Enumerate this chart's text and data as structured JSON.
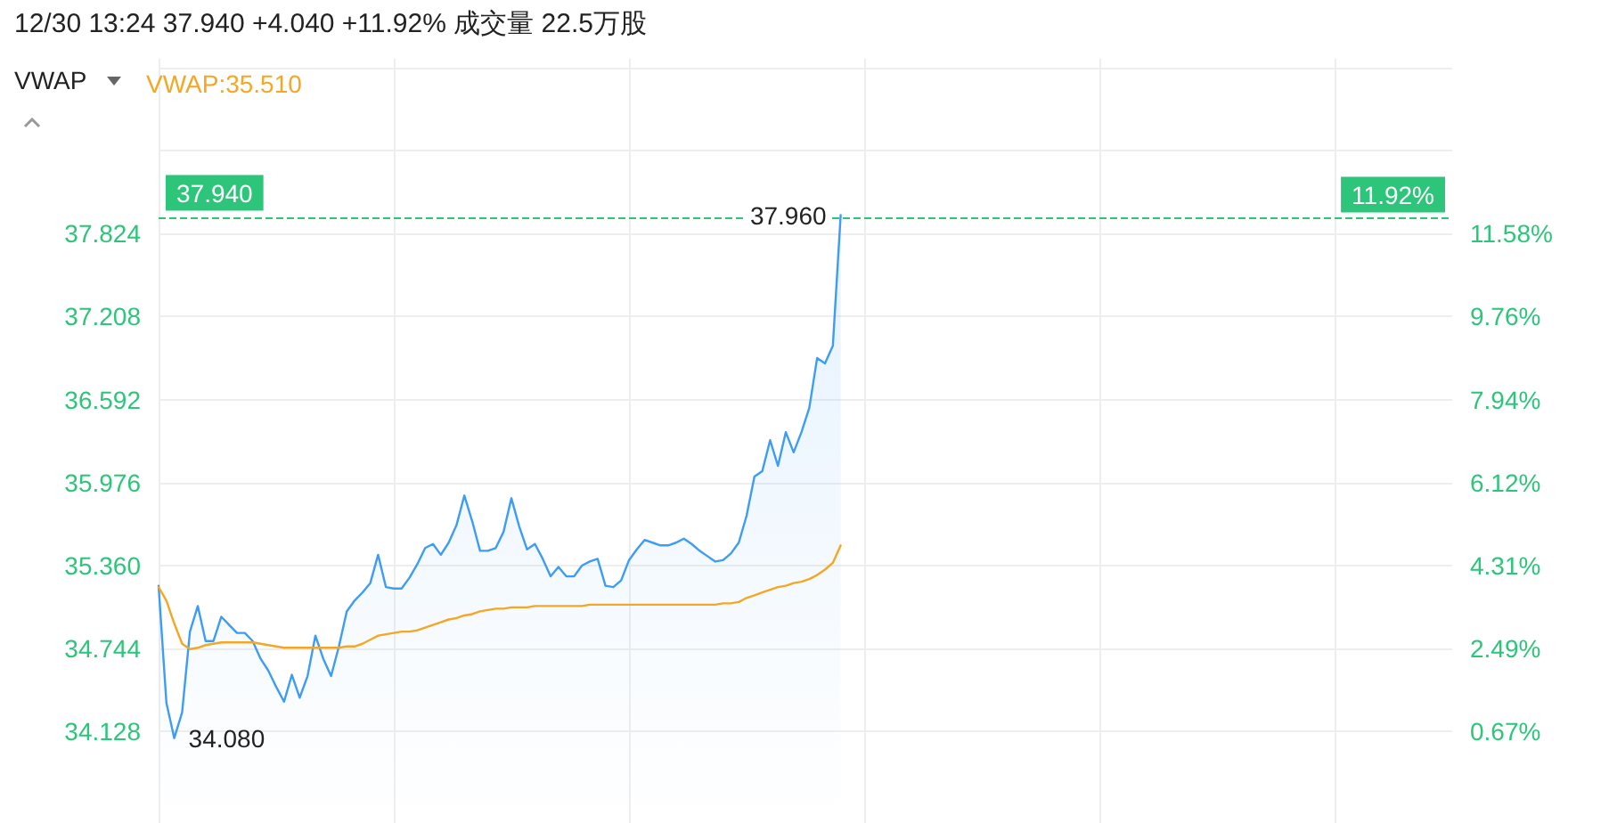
{
  "chart_data": {
    "type": "line",
    "title": "12/30 13:24 37.940 +4.040 +11.92% 成交量 22.5万股",
    "subtitle": "VWAP",
    "categories": [
      null,
      null,
      null,
      null,
      null,
      null,
      null,
      null,
      null,
      null,
      null,
      null,
      null,
      null,
      null,
      null,
      null,
      null,
      null,
      null,
      null,
      null,
      null,
      null,
      null,
      null,
      null,
      null,
      null,
      null,
      null,
      null,
      null,
      null,
      null,
      null,
      null,
      null,
      null,
      null,
      null,
      null,
      null,
      null,
      null,
      null,
      null,
      null,
      null,
      null,
      null,
      null,
      null,
      null,
      null,
      null,
      null,
      null,
      null,
      null,
      null,
      null,
      null,
      null,
      null,
      null,
      null,
      null,
      null,
      null,
      null,
      null,
      null,
      null,
      null,
      null,
      null,
      null,
      null,
      null,
      null,
      null,
      null,
      null,
      null,
      null,
      null,
      null
    ],
    "series": [
      {
        "type": "area",
        "color": "#3d9cf5",
        "values": [
          35.21,
          34.34,
          34.08,
          34.27,
          34.87,
          35.06,
          34.8,
          34.8,
          34.98,
          34.92,
          34.86,
          34.86,
          34.8,
          34.67,
          34.58,
          34.46,
          34.35,
          34.55,
          34.38,
          34.54,
          34.84,
          34.67,
          34.54,
          34.76,
          35.02,
          35.1,
          35.16,
          35.23,
          35.44,
          35.2,
          35.19,
          35.19,
          35.27,
          35.37,
          35.49,
          35.52,
          35.44,
          35.53,
          35.66,
          35.88,
          35.69,
          35.47,
          35.47,
          35.49,
          35.61,
          35.86,
          35.65,
          35.48,
          35.52,
          35.41,
          35.28,
          35.35,
          35.28,
          35.28,
          35.36,
          35.39,
          35.41,
          35.21,
          35.2,
          35.25,
          35.4,
          35.48,
          35.55,
          35.53,
          35.51,
          35.51,
          35.53,
          35.56,
          35.52,
          35.47,
          35.43,
          35.39,
          35.4,
          35.45,
          35.53,
          35.73,
          36.02,
          36.06,
          36.29,
          36.1,
          36.35,
          36.2,
          36.35,
          36.53,
          36.9,
          36.86,
          36.99,
          37.96
        ]
      },
      {
        "name": "VWAP:35.510",
        "color": "#f5a623",
        "values": [
          35.2,
          35.1,
          34.93,
          34.78,
          34.74,
          34.75,
          34.77,
          34.78,
          34.79,
          34.79,
          34.79,
          34.79,
          34.79,
          34.78,
          34.77,
          34.76,
          34.75,
          34.75,
          34.75,
          34.75,
          34.75,
          34.75,
          34.75,
          34.75,
          34.76,
          34.76,
          34.78,
          34.81,
          34.84,
          34.85,
          34.86,
          34.87,
          34.87,
          34.88,
          34.9,
          34.92,
          34.94,
          34.96,
          34.97,
          34.99,
          35.0,
          35.02,
          35.03,
          35.04,
          35.04,
          35.05,
          35.05,
          35.05,
          35.06,
          35.06,
          35.06,
          35.06,
          35.06,
          35.06,
          35.06,
          35.07,
          35.07,
          35.07,
          35.07,
          35.07,
          35.07,
          35.07,
          35.07,
          35.07,
          35.07,
          35.07,
          35.07,
          35.07,
          35.07,
          35.07,
          35.07,
          35.07,
          35.08,
          35.08,
          35.09,
          35.12,
          35.14,
          35.16,
          35.18,
          35.2,
          35.21,
          35.23,
          35.24,
          35.26,
          35.29,
          35.33,
          35.38,
          35.51
        ]
      }
    ],
    "ylim": [
      33.45,
      39.12
    ],
    "yticks": [
      {
        "value": 34.128,
        "label": "34.128"
      },
      {
        "value": 34.744,
        "label": "34.744"
      },
      {
        "value": 35.36,
        "label": "35.360"
      },
      {
        "value": 35.976,
        "label": "35.976"
      },
      {
        "value": 36.592,
        "label": "36.592"
      },
      {
        "value": 37.208,
        "label": "37.208"
      },
      {
        "value": 37.824,
        "label": "37.824"
      },
      {
        "value": 38.44,
        "label": null
      },
      {
        "value": 39.056,
        "label": null
      }
    ],
    "y2lim": [
      -1.33,
      15.4
    ],
    "y2ticks": [
      {
        "value": 0.67,
        "label": "0.67%"
      },
      {
        "value": 2.49,
        "label": "2.49%"
      },
      {
        "value": 4.31,
        "label": "4.31%"
      },
      {
        "value": 6.12,
        "label": "6.12%"
      },
      {
        "value": 7.94,
        "label": "7.94%"
      },
      {
        "value": 9.76,
        "label": "9.76%"
      },
      {
        "value": 11.58,
        "label": "11.58%"
      }
    ],
    "ref_lines": [
      {
        "axis": "y",
        "value": 37.94,
        "label": "37.940",
        "color": "#2dc57a",
        "line_style": "dashed"
      }
    ],
    "annotations": [
      "34.080",
      {
        "text": "37.960",
        "y": 37.96
      },
      {
        "text": "11.92%",
        "y": 37.94
      }
    ],
    "grid": true,
    "legend": "top left",
    "tick_labels": "y",
    "marker": "none",
    "line_style": "solid"
  }
}
